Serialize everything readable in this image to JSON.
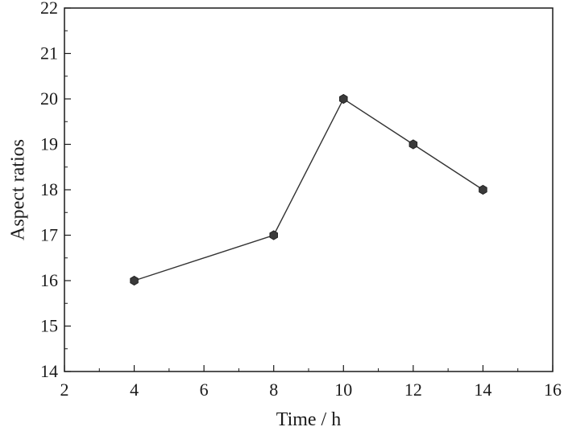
{
  "chart_data": {
    "type": "line",
    "xlabel": "Time / h",
    "ylabel": "Aspect ratios",
    "xlim": [
      2,
      16
    ],
    "ylim": [
      14,
      22
    ],
    "x_ticks": [
      2,
      4,
      6,
      8,
      10,
      12,
      14,
      16
    ],
    "y_ticks": [
      14,
      15,
      16,
      17,
      18,
      19,
      20,
      21,
      22
    ],
    "grid": false,
    "legend": "none",
    "marker": "hexagon",
    "colors": {
      "line": "#333333",
      "marker": "#3a3a3a",
      "axes": "#1a1a1a"
    },
    "series": [
      {
        "x": [
          4,
          8,
          10,
          12,
          14
        ],
        "y": [
          16,
          17,
          20,
          19,
          18
        ]
      }
    ]
  }
}
